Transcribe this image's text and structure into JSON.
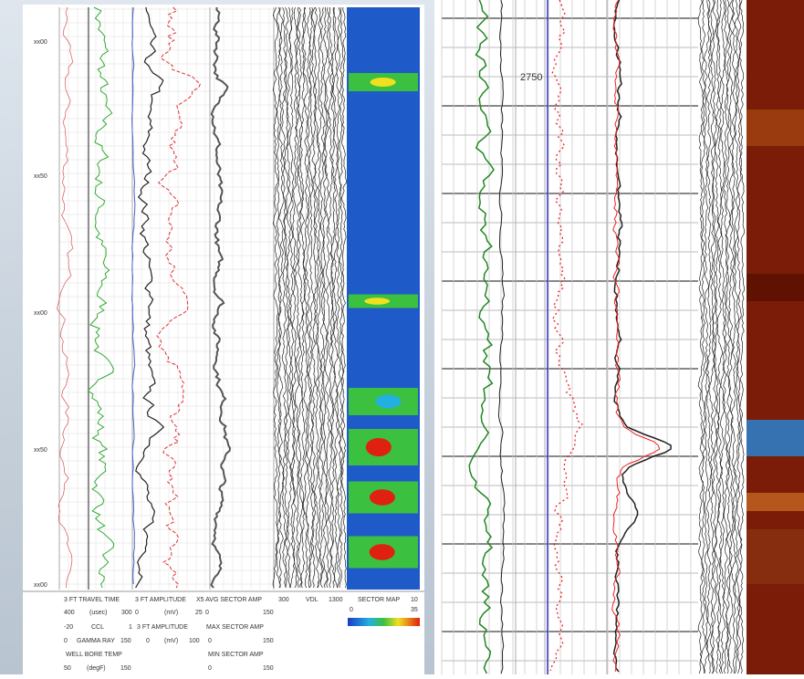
{
  "left_log": {
    "depth_labels": [
      "xx00",
      "xx50",
      "xx00",
      "xx50",
      "xx00"
    ],
    "header": {
      "row1": [
        "3 FT TRAVEL TIME",
        "3 FT AMPLITUDE",
        "X5 AVG SECTOR AMP",
        "300",
        "VDL",
        "1300",
        "SECTOR MAP",
        "10"
      ],
      "row1_scale": [
        "400",
        "(usec)",
        "300",
        "0",
        "(mV)",
        "25",
        "0",
        "150"
      ],
      "colorbar": [
        "0",
        "35"
      ],
      "row2": [
        "-20",
        "CCL",
        "1",
        "3 FT AMPLITUDE",
        "MAX SECTOR AMP"
      ],
      "row3": [
        "0",
        "GAMMA RAY",
        "150",
        "0",
        "(mV)",
        "100",
        "0",
        "150"
      ],
      "row4": [
        "WELL BORE TEMP",
        "MIN SECTOR AMP"
      ],
      "row5": [
        "50",
        "(degF)",
        "150",
        "0",
        "150"
      ]
    }
  },
  "right_log": {
    "depth_label": "2750"
  }
}
